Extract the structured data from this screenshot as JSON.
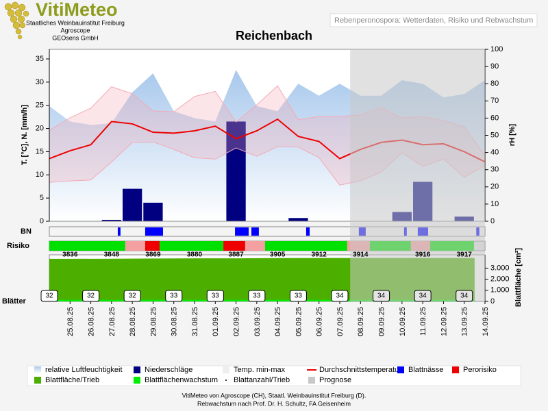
{
  "header": {
    "logo": "VitiMeteo",
    "org_lines": [
      "Staatliches Weinbauinstitut Freiburg",
      "Agroscope",
      "GEOsens GmbH"
    ],
    "subtitle": "Rebenperonospora: Wetterdaten, Risiko und Rebwachstum"
  },
  "chart_data": {
    "type": "combo",
    "title": "Reichenbach",
    "categories": [
      null,
      "25.08.25",
      "26.08.25",
      "27.08.25",
      "28.08.25",
      "29.08.25",
      "30.08.25",
      "31.08.25",
      "01.09.25",
      "02.09.25",
      "03.09.25",
      "04.09.25",
      "05.09.25",
      "06.09.25",
      "07.09.25",
      "08.09.25",
      "09.09.25",
      "10.09.25",
      "11.09.25",
      "12.09.25",
      "13.09.25",
      "14.09.25"
    ],
    "y_label": "T. [°C], N. [mm/h]",
    "y2_label": "rH [%]",
    "ylim": [
      0,
      37.07
    ],
    "yticks": [
      0,
      5,
      10,
      15,
      20,
      25,
      30,
      35
    ],
    "y2lim": [
      0,
      100
    ],
    "y2ticks": [
      0,
      10,
      20,
      30,
      40,
      50,
      60,
      70,
      80,
      90,
      100
    ],
    "series": [
      {
        "name": "relative Luftfeuchtigkeit",
        "type": "area",
        "axis": "y2",
        "color": "#a8c8ec",
        "values": [
          67,
          58,
          56,
          57,
          75,
          86,
          64,
          60,
          58,
          88,
          67,
          64,
          80,
          73,
          80,
          73,
          73,
          82,
          80,
          72,
          74,
          82
        ]
      },
      {
        "name": "Niederschläge",
        "type": "bar",
        "color": "#000080",
        "values": [
          0,
          0,
          0,
          0.3,
          7,
          4,
          0,
          0,
          0,
          21.5,
          0,
          0,
          0.7,
          0,
          0,
          0,
          0,
          2,
          8.5,
          0,
          1,
          0
        ]
      },
      {
        "name": "Temp. min-max",
        "type": "band",
        "color": "#f4a8b4",
        "high": [
          19.6,
          22.3,
          24.4,
          29,
          27.5,
          23.8,
          23.6,
          26.9,
          28,
          21.4,
          25.1,
          29.2,
          21.9,
          22.6,
          22.6,
          22.9,
          24.5,
          22.3,
          22.6,
          21.7,
          20.4,
          14.2
        ],
        "low": [
          8.4,
          8.7,
          8.9,
          12.8,
          17,
          17.1,
          15.5,
          13.7,
          13.4,
          15.8,
          14,
          16.1,
          16,
          13.7,
          7.8,
          8.7,
          10.6,
          14.8,
          11.8,
          13.4,
          9.5,
          12
        ]
      },
      {
        "name": "Durchschnittstemperatur",
        "type": "line",
        "color": "#ee0000",
        "values": [
          13.5,
          15.2,
          16.5,
          21.5,
          21,
          19.2,
          19,
          19.5,
          20.5,
          17.8,
          19.5,
          22,
          18.3,
          17.2,
          13.5,
          15.5,
          17,
          17.5,
          16.5,
          16.7,
          15,
          12.8
        ]
      }
    ],
    "prognose": {
      "name": "Prognose",
      "from": "08.09.25",
      "color": "#c8c8c8"
    },
    "bn": {
      "label": "BN",
      "name": "Blattnässe",
      "color": "#0000ff",
      "intervals": [
        [
          3.3,
          3.43
        ],
        [
          4.62,
          5.48
        ],
        [
          8.95,
          9.61
        ],
        [
          9.74,
          10.1
        ],
        [
          12.38,
          12.55
        ],
        [
          14.92,
          15.25
        ],
        [
          17.1,
          17.23
        ],
        [
          17.76,
          18.26
        ],
        [
          20.58,
          20.73
        ]
      ]
    },
    "risiko": {
      "label": "Risiko",
      "name": "Perorisiko",
      "color": "#ee0000",
      "segments": [
        {
          "from": 0,
          "to": 3.66,
          "color": "#00e000"
        },
        {
          "from": 3.66,
          "to": 4.62,
          "color": "#f4a0a0"
        },
        {
          "from": 4.62,
          "to": 5.32,
          "color": "#ee0000"
        },
        {
          "from": 5.32,
          "to": 8.39,
          "color": "#00e000"
        },
        {
          "from": 8.39,
          "to": 9.44,
          "color": "#ee0000"
        },
        {
          "from": 9.44,
          "to": 10.4,
          "color": "#f4a0a0"
        },
        {
          "from": 10.4,
          "to": 14.36,
          "color": "#00e000"
        },
        {
          "from": 14.36,
          "to": 15.45,
          "color": "#f4a0a0"
        },
        {
          "from": 15.45,
          "to": 17.43,
          "color": "#00e000"
        },
        {
          "from": 17.43,
          "to": 18.36,
          "color": "#f4a0a0"
        },
        {
          "from": 18.36,
          "to": 20.47,
          "color": "#00e000"
        }
      ]
    },
    "leaf": {
      "label": "Blätter",
      "y_label": "Blattfläche [cm²]",
      "ylim": [
        0,
        4200
      ],
      "yticks": [
        0,
        {
          "value": 1000,
          "label": "1.000"
        },
        {
          "value": 2000,
          "label": "2.000"
        },
        {
          "value": 3000,
          "label": "3.000"
        }
      ],
      "area": {
        "name": "Blattfläche/Trieb",
        "color": "#4caf00",
        "x": [
          1,
          3,
          5,
          7,
          9,
          11,
          13,
          15,
          18,
          20
        ],
        "values": [
          3836,
          3848,
          3869,
          3880,
          3887,
          3905,
          3912,
          3914,
          3916,
          3917
        ]
      },
      "growth": {
        "name": "Blattflächenwachstum",
        "color": "#00ee00",
        "x": [
          1,
          3,
          5,
          7,
          9,
          11,
          13,
          15,
          18,
          20
        ],
        "values": [
          150,
          150,
          150,
          150,
          150,
          150,
          150,
          150,
          150,
          150
        ]
      },
      "count": {
        "name": "Blattanzahl/Trieb",
        "x": [
          0,
          2,
          4,
          6,
          8,
          10,
          12,
          14,
          16,
          18,
          20
        ],
        "values": [
          32,
          32,
          32,
          33,
          33,
          33,
          33,
          34,
          34,
          34,
          34
        ]
      }
    }
  },
  "footer": [
    "VitiMeteo von Agroscope (CH), Staatl. Weinbauinstitut Freiburg (D).",
    "Rebwachstum nach Prof. Dr. H. Schultz, FA Geisenheim"
  ]
}
